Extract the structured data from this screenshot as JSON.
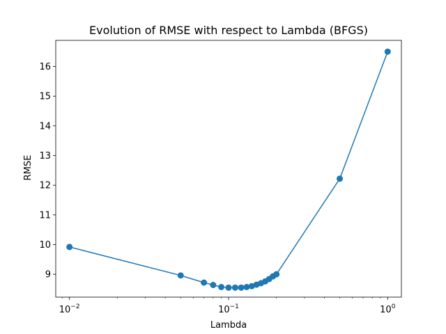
{
  "chart_data": {
    "type": "line",
    "title": "Evolution of RMSE with respect to Lambda (BFGS)",
    "xlabel": "Lambda",
    "ylabel": "RMSE",
    "xscale": "log",
    "xlim": [
      0.0082,
      1.22
    ],
    "ylim": [
      8.23,
      16.88
    ],
    "x_ticks": [
      {
        "value": 0.01,
        "base": "10",
        "exp": "−2"
      },
      {
        "value": 0.1,
        "base": "10",
        "exp": "−1"
      },
      {
        "value": 1,
        "base": "10",
        "exp": "0"
      }
    ],
    "y_ticks": [
      9,
      10,
      11,
      12,
      13,
      14,
      15,
      16
    ],
    "grid": false,
    "marker": "circle",
    "color": "#1f77b4",
    "series": [
      {
        "x": [
          0.01,
          0.05,
          0.07,
          0.08,
          0.09,
          0.1,
          0.11,
          0.12,
          0.13,
          0.14,
          0.15,
          0.16,
          0.17,
          0.18,
          0.19,
          0.2,
          0.5,
          1.0
        ],
        "y": [
          9.92,
          8.96,
          8.72,
          8.64,
          8.57,
          8.55,
          8.55,
          8.55,
          8.57,
          8.6,
          8.65,
          8.7,
          8.76,
          8.84,
          8.93,
          9.0,
          12.22,
          16.5
        ]
      }
    ]
  }
}
